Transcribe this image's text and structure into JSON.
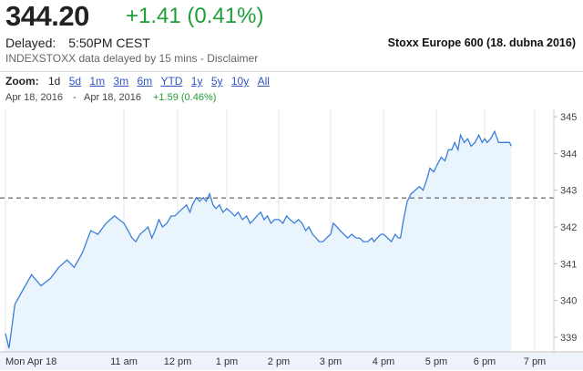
{
  "header": {
    "price": "344.20",
    "change": "+1.41 (0.41%)",
    "delayed_label": "Delayed:",
    "delayed_time": "5:50PM CEST",
    "source_note": "INDEXSTOXX data delayed by 15 mins - Disclaimer",
    "caption": "Stoxx Europe 600 (18. dubna 2016)"
  },
  "zoom": {
    "label": "Zoom:",
    "options": [
      "1d",
      "5d",
      "1m",
      "3m",
      "6m",
      "YTD",
      "1y",
      "5y",
      "10y",
      "All"
    ],
    "active": "1d"
  },
  "range": {
    "from": "Apr 18, 2016",
    "separator": "-",
    "to": "Apr 18, 2016",
    "change": "+1.59 (0.46%)"
  },
  "colors": {
    "positive": "#1f9e3a",
    "line": "#3d7edb",
    "fill": "#e9f4fc",
    "link": "#3255c8"
  },
  "chart_data": {
    "type": "area",
    "x_categories": [
      "Mon Apr 18",
      "11 am",
      "12 pm",
      "1 pm",
      "2 pm",
      "3 pm",
      "4 pm",
      "5 pm",
      "6 pm",
      "7 pm"
    ],
    "y_ticks": [
      339,
      340,
      341,
      342,
      343,
      344,
      345
    ],
    "ylim": [
      338.6,
      345.2
    ],
    "previous_close": 342.79,
    "series": [
      {
        "points": [
          [
            9.0,
            339.1
          ],
          [
            9.03,
            338.7
          ],
          [
            9.08,
            339.9
          ],
          [
            9.15,
            340.3
          ],
          [
            9.22,
            340.7
          ],
          [
            9.3,
            340.4
          ],
          [
            9.38,
            340.6
          ],
          [
            9.45,
            340.9
          ],
          [
            9.52,
            341.1
          ],
          [
            9.58,
            340.9
          ],
          [
            9.65,
            341.3
          ],
          [
            9.72,
            341.9
          ],
          [
            9.78,
            341.8
          ],
          [
            9.85,
            342.1
          ],
          [
            9.92,
            342.3
          ],
          [
            10.0,
            342.1
          ],
          [
            10.08,
            341.9
          ],
          [
            10.15,
            341.7
          ],
          [
            10.22,
            341.6
          ],
          [
            10.3,
            341.8
          ],
          [
            10.38,
            341.9
          ],
          [
            10.45,
            342.0
          ],
          [
            10.52,
            341.7
          ],
          [
            10.58,
            341.9
          ],
          [
            10.65,
            342.2
          ],
          [
            10.72,
            342.0
          ],
          [
            10.8,
            342.1
          ],
          [
            10.88,
            342.3
          ],
          [
            10.95,
            342.3
          ],
          [
            11.02,
            342.4
          ],
          [
            11.1,
            342.5
          ],
          [
            11.18,
            342.6
          ],
          [
            11.25,
            342.4
          ],
          [
            11.3,
            342.6
          ],
          [
            11.38,
            342.8
          ],
          [
            11.45,
            342.7
          ],
          [
            11.52,
            342.8
          ],
          [
            11.58,
            342.7
          ],
          [
            11.65,
            342.9
          ],
          [
            11.72,
            342.6
          ],
          [
            11.78,
            342.5
          ],
          [
            11.85,
            342.6
          ],
          [
            11.92,
            342.4
          ],
          [
            12.0,
            342.5
          ],
          [
            12.08,
            342.4
          ],
          [
            12.15,
            342.3
          ],
          [
            12.22,
            342.4
          ],
          [
            12.3,
            342.2
          ],
          [
            12.38,
            342.3
          ],
          [
            12.45,
            342.1
          ],
          [
            12.52,
            342.2
          ],
          [
            12.58,
            342.3
          ],
          [
            12.65,
            342.4
          ],
          [
            12.72,
            342.2
          ],
          [
            12.78,
            342.3
          ],
          [
            12.85,
            342.1
          ],
          [
            12.92,
            342.2
          ],
          [
            13.0,
            342.2
          ],
          [
            13.08,
            342.1
          ],
          [
            13.15,
            342.3
          ],
          [
            13.22,
            342.2
          ],
          [
            13.3,
            342.1
          ],
          [
            13.38,
            342.2
          ],
          [
            13.45,
            342.1
          ],
          [
            13.52,
            341.9
          ],
          [
            13.58,
            342.0
          ],
          [
            13.65,
            341.8
          ],
          [
            13.72,
            341.7
          ],
          [
            13.78,
            341.6
          ],
          [
            13.85,
            341.6
          ],
          [
            13.92,
            341.7
          ],
          [
            14.0,
            341.8
          ],
          [
            14.05,
            342.1
          ],
          [
            14.12,
            342.0
          ],
          [
            14.18,
            341.9
          ],
          [
            14.25,
            341.8
          ],
          [
            14.32,
            341.7
          ],
          [
            14.4,
            341.8
          ],
          [
            14.48,
            341.7
          ],
          [
            14.55,
            341.7
          ],
          [
            14.62,
            341.6
          ],
          [
            14.7,
            341.6
          ],
          [
            14.78,
            341.7
          ],
          [
            14.82,
            341.6
          ],
          [
            14.88,
            341.7
          ],
          [
            14.95,
            341.8
          ],
          [
            15.0,
            341.8
          ],
          [
            15.08,
            341.7
          ],
          [
            15.15,
            341.6
          ],
          [
            15.22,
            341.8
          ],
          [
            15.28,
            341.7
          ],
          [
            15.32,
            341.7
          ],
          [
            15.38,
            342.2
          ],
          [
            15.45,
            342.7
          ],
          [
            15.52,
            342.9
          ],
          [
            15.6,
            343.0
          ],
          [
            15.68,
            343.1
          ],
          [
            15.75,
            343.0
          ],
          [
            15.82,
            343.3
          ],
          [
            15.88,
            343.6
          ],
          [
            15.95,
            343.5
          ],
          [
            16.02,
            343.7
          ],
          [
            16.1,
            343.9
          ],
          [
            16.18,
            343.8
          ],
          [
            16.25,
            344.1
          ],
          [
            16.32,
            344.1
          ],
          [
            16.38,
            344.3
          ],
          [
            16.45,
            344.1
          ],
          [
            16.5,
            344.5
          ],
          [
            16.58,
            344.3
          ],
          [
            16.65,
            344.4
          ],
          [
            16.72,
            344.2
          ],
          [
            16.8,
            344.3
          ],
          [
            16.88,
            344.5
          ],
          [
            16.95,
            344.3
          ],
          [
            17.0,
            344.4
          ],
          [
            17.05,
            344.3
          ],
          [
            17.12,
            344.4
          ],
          [
            17.2,
            344.6
          ],
          [
            17.28,
            344.3
          ],
          [
            17.35,
            344.3
          ],
          [
            17.42,
            344.3
          ],
          [
            17.5,
            344.3
          ],
          [
            17.53,
            344.2
          ]
        ]
      }
    ]
  }
}
